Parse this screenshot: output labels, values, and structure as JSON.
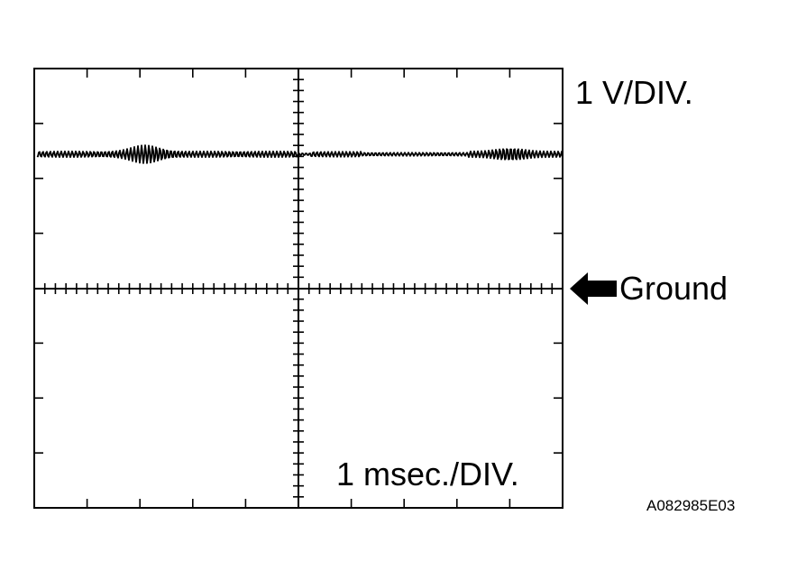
{
  "diagram": {
    "volts_per_div": "1 V/DIV.",
    "time_per_div": "1 msec./DIV.",
    "ground_marker": "Ground",
    "figure_code": "A082985E03"
  },
  "icons": {
    "ground_arrow": "left-arrow-icon"
  },
  "colors": {
    "trace": "#000000",
    "background": "#ffffff"
  }
}
